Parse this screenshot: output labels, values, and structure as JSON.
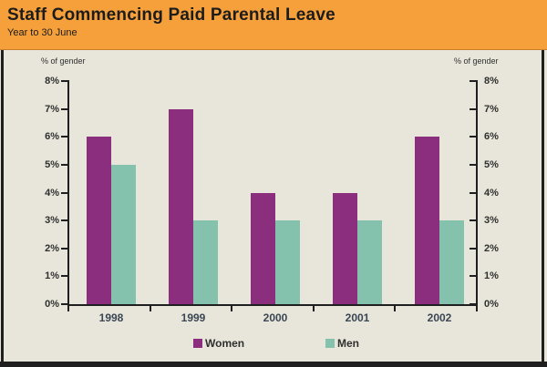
{
  "header": {
    "title": "Staff Commencing Paid Parental Leave",
    "subtitle": "Year to 30 June"
  },
  "chart_data": {
    "type": "bar",
    "categories": [
      "1998",
      "1999",
      "2000",
      "2001",
      "2002"
    ],
    "series": [
      {
        "name": "Women",
        "color": "#8C2E7E",
        "values": [
          6,
          7,
          4,
          4,
          6
        ]
      },
      {
        "name": "Men",
        "color": "#85C2AE",
        "values": [
          5,
          3,
          3,
          3,
          3
        ]
      }
    ],
    "ylabel_left": "% of gender",
    "ylabel_right": "% of gender",
    "ylim": [
      0,
      8
    ],
    "ytick_step": 1,
    "yticks": [
      "0%",
      "1%",
      "2%",
      "3%",
      "4%",
      "5%",
      "6%",
      "7%",
      "8%"
    ],
    "legend_position": "bottom",
    "grid": false
  },
  "colors": {
    "header_bg": "#F5A03B",
    "panel_bg": "#E8E6DA",
    "frame": "#1F1F1F",
    "axis": "#1F1F1F",
    "title_text": "#1C1C1C",
    "tick_label_text": "#2F2F2F",
    "category_label_text": "#3A4653",
    "legend_text": "#2F2F2F"
  }
}
